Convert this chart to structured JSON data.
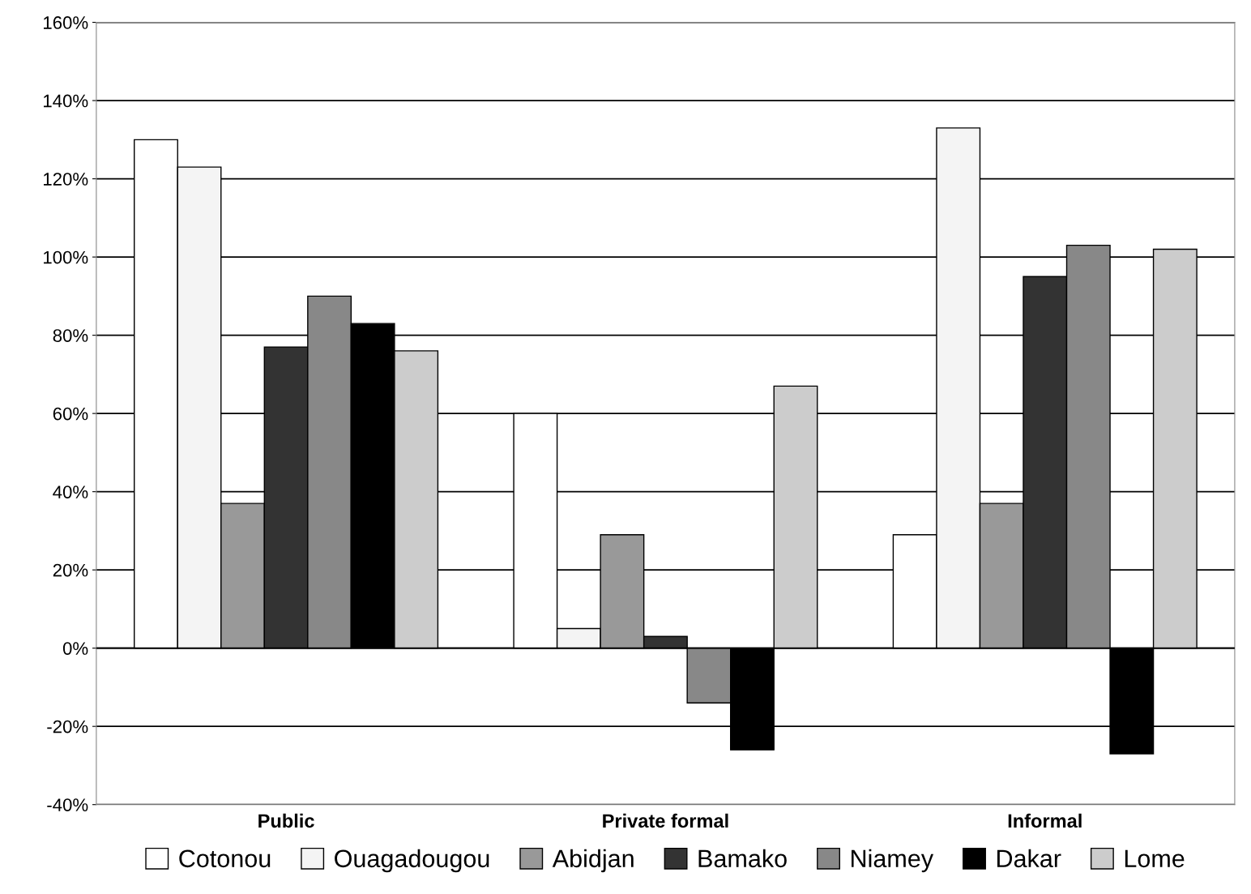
{
  "chart_data": {
    "type": "bar",
    "categories": [
      "Public",
      "Private formal",
      "Informal"
    ],
    "series": [
      {
        "name": "Cotonou",
        "color": "#ffffff",
        "values": [
          130,
          60,
          29
        ]
      },
      {
        "name": "Ouagadougou",
        "color": "#f4f4f4",
        "values": [
          123,
          5,
          133
        ]
      },
      {
        "name": "Abidjan",
        "color": "#999999",
        "values": [
          37,
          29,
          37
        ]
      },
      {
        "name": "Bamako",
        "color": "#333333",
        "values": [
          77,
          3,
          95
        ]
      },
      {
        "name": "Niamey",
        "color": "#888888",
        "values": [
          90,
          -14,
          103
        ]
      },
      {
        "name": "Dakar",
        "color": "#000000",
        "values": [
          83,
          -26,
          -27
        ]
      },
      {
        "name": "Lome",
        "color": "#cccccc",
        "values": [
          76,
          67,
          102
        ]
      }
    ],
    "ylim": [
      -40,
      160
    ],
    "yticks": [
      {
        "value": -40,
        "label": "-40%"
      },
      {
        "value": -20,
        "label": "-20%"
      },
      {
        "value": 0,
        "label": "0%"
      },
      {
        "value": 20,
        "label": "20%"
      },
      {
        "value": 40,
        "label": "40%"
      },
      {
        "value": 60,
        "label": "60%"
      },
      {
        "value": 80,
        "label": "80%"
      },
      {
        "value": 100,
        "label": "100%"
      },
      {
        "value": 120,
        "label": "120%"
      },
      {
        "value": 140,
        "label": "140%"
      },
      {
        "value": 160,
        "label": "160%"
      }
    ],
    "grid": "y",
    "legend": "bottom"
  }
}
